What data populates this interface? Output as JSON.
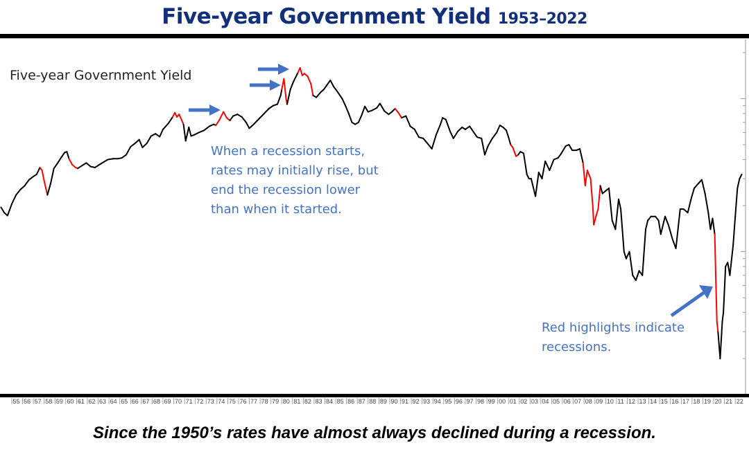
{
  "header": {
    "title": "Five-year Government Yield",
    "years": "1953–2022"
  },
  "caption": "Since the 1950’s rates have almost always declined during a recession.",
  "annotations": {
    "recession_note": [
      "When a recession starts,",
      "rates may initially rise, but",
      "end the recession lower",
      "than when it started."
    ],
    "legend_note": [
      "Red highlights indicate",
      "recessions."
    ]
  },
  "colors": {
    "title": "#12307a",
    "line": "#000000",
    "recession": "#ff0000",
    "annotation": "#4472c4"
  },
  "chart_data": {
    "type": "line",
    "title": "Five-year Government Yield",
    "xlabel": "",
    "ylabel": "",
    "y_scale": "log",
    "ylim": [
      0.12,
      30
    ],
    "xlim": [
      1954,
      2022.6
    ],
    "grid": false,
    "tick_labels": [
      "55",
      "56",
      "57",
      "58",
      "59",
      "60",
      "61",
      "62",
      "63",
      "64",
      "65",
      "66",
      "67",
      "68",
      "69",
      "70",
      "71",
      "72",
      "73",
      "74",
      "75",
      "76",
      "77",
      "78",
      "79",
      "80",
      "81",
      "82",
      "83",
      "84",
      "85",
      "86",
      "87",
      "88",
      "89",
      "90",
      "91",
      "92",
      "93",
      "94",
      "95",
      "96",
      "97",
      "98",
      "99",
      "00",
      "01",
      "02",
      "03",
      "04",
      "05",
      "06",
      "07",
      "08",
      "09",
      "10",
      "11",
      "12",
      "13",
      "14",
      "15",
      "16",
      "17",
      "18",
      "19",
      "20",
      "21",
      "22"
    ],
    "recessions": [
      [
        1957.6,
        1958.3
      ],
      [
        1960.3,
        1961.1
      ],
      [
        1969.9,
        1970.9
      ],
      [
        1973.9,
        1975.2
      ],
      [
        1980.0,
        1980.5
      ],
      [
        1981.5,
        1982.9
      ],
      [
        1990.5,
        1991.2
      ],
      [
        2001.2,
        2001.9
      ],
      [
        2007.9,
        2009.5
      ],
      [
        2020.1,
        2020.4
      ]
    ],
    "series": [
      {
        "name": "Five-year Government Yield",
        "points": [
          [
            1954.0,
            1.95
          ],
          [
            1954.3,
            1.8
          ],
          [
            1954.6,
            1.72
          ],
          [
            1955.0,
            2.05
          ],
          [
            1955.4,
            2.35
          ],
          [
            1955.8,
            2.55
          ],
          [
            1956.2,
            2.7
          ],
          [
            1956.6,
            2.95
          ],
          [
            1957.0,
            3.1
          ],
          [
            1957.3,
            3.2
          ],
          [
            1957.6,
            3.55
          ],
          [
            1957.8,
            3.4
          ],
          [
            1958.0,
            2.9
          ],
          [
            1958.3,
            2.35
          ],
          [
            1958.6,
            2.8
          ],
          [
            1958.9,
            3.5
          ],
          [
            1959.2,
            3.75
          ],
          [
            1959.6,
            4.15
          ],
          [
            1959.9,
            4.45
          ],
          [
            1960.1,
            4.5
          ],
          [
            1960.3,
            4.05
          ],
          [
            1960.6,
            3.7
          ],
          [
            1960.9,
            3.55
          ],
          [
            1961.1,
            3.5
          ],
          [
            1961.5,
            3.65
          ],
          [
            1961.9,
            3.8
          ],
          [
            1962.3,
            3.6
          ],
          [
            1962.7,
            3.55
          ],
          [
            1963.1,
            3.7
          ],
          [
            1963.5,
            3.85
          ],
          [
            1963.9,
            4.0
          ],
          [
            1964.4,
            4.05
          ],
          [
            1964.8,
            4.05
          ],
          [
            1965.2,
            4.1
          ],
          [
            1965.6,
            4.3
          ],
          [
            1966.0,
            4.85
          ],
          [
            1966.4,
            5.1
          ],
          [
            1966.8,
            5.4
          ],
          [
            1967.1,
            4.8
          ],
          [
            1967.5,
            5.1
          ],
          [
            1967.9,
            5.7
          ],
          [
            1968.3,
            5.9
          ],
          [
            1968.7,
            5.65
          ],
          [
            1969.0,
            6.3
          ],
          [
            1969.5,
            6.9
          ],
          [
            1969.9,
            7.6
          ],
          [
            1970.1,
            8.1
          ],
          [
            1970.3,
            7.6
          ],
          [
            1970.5,
            7.9
          ],
          [
            1970.9,
            6.8
          ],
          [
            1971.1,
            5.3
          ],
          [
            1971.4,
            6.5
          ],
          [
            1971.6,
            5.7
          ],
          [
            1971.9,
            5.8
          ],
          [
            1972.3,
            6.0
          ],
          [
            1972.8,
            6.2
          ],
          [
            1973.3,
            6.6
          ],
          [
            1973.7,
            6.8
          ],
          [
            1973.9,
            6.7
          ],
          [
            1974.2,
            7.2
          ],
          [
            1974.6,
            8.2
          ],
          [
            1974.9,
            7.5
          ],
          [
            1975.2,
            7.2
          ],
          [
            1975.5,
            7.7
          ],
          [
            1975.9,
            7.9
          ],
          [
            1976.3,
            7.6
          ],
          [
            1976.7,
            7.0
          ],
          [
            1977.0,
            6.4
          ],
          [
            1977.4,
            6.8
          ],
          [
            1977.9,
            7.4
          ],
          [
            1978.3,
            7.9
          ],
          [
            1978.8,
            8.6
          ],
          [
            1979.2,
            9.0
          ],
          [
            1979.6,
            9.2
          ],
          [
            1979.9,
            10.5
          ],
          [
            1980.0,
            11.5
          ],
          [
            1980.2,
            13.5
          ],
          [
            1980.4,
            10.0
          ],
          [
            1980.5,
            9.2
          ],
          [
            1980.8,
            11.5
          ],
          [
            1981.1,
            13.0
          ],
          [
            1981.5,
            14.8
          ],
          [
            1981.7,
            15.9
          ],
          [
            1981.9,
            14.2
          ],
          [
            1982.1,
            14.6
          ],
          [
            1982.4,
            14.0
          ],
          [
            1982.7,
            12.5
          ],
          [
            1982.9,
            10.5
          ],
          [
            1983.2,
            10.2
          ],
          [
            1983.6,
            11.0
          ],
          [
            1983.9,
            11.5
          ],
          [
            1984.2,
            12.3
          ],
          [
            1984.5,
            13.2
          ],
          [
            1984.8,
            12.0
          ],
          [
            1985.2,
            11.0
          ],
          [
            1985.6,
            10.0
          ],
          [
            1985.9,
            9.0
          ],
          [
            1986.2,
            8.0
          ],
          [
            1986.5,
            7.0
          ],
          [
            1986.8,
            6.8
          ],
          [
            1987.1,
            7.0
          ],
          [
            1987.4,
            7.8
          ],
          [
            1987.7,
            8.9
          ],
          [
            1988.0,
            8.2
          ],
          [
            1988.4,
            8.4
          ],
          [
            1988.8,
            8.7
          ],
          [
            1989.1,
            9.3
          ],
          [
            1989.5,
            8.3
          ],
          [
            1989.9,
            7.9
          ],
          [
            1990.2,
            8.2
          ],
          [
            1990.5,
            8.6
          ],
          [
            1990.8,
            8.1
          ],
          [
            1991.1,
            7.5
          ],
          [
            1991.5,
            7.7
          ],
          [
            1991.9,
            6.6
          ],
          [
            1992.3,
            6.3
          ],
          [
            1992.7,
            5.6
          ],
          [
            1993.1,
            5.5
          ],
          [
            1993.5,
            5.1
          ],
          [
            1993.9,
            4.7
          ],
          [
            1994.3,
            5.8
          ],
          [
            1994.7,
            6.8
          ],
          [
            1994.9,
            7.5
          ],
          [
            1995.2,
            7.3
          ],
          [
            1995.6,
            6.1
          ],
          [
            1995.9,
            5.5
          ],
          [
            1996.3,
            6.1
          ],
          [
            1996.7,
            6.5
          ],
          [
            1997.0,
            6.3
          ],
          [
            1997.4,
            6.6
          ],
          [
            1997.8,
            6.0
          ],
          [
            1998.1,
            5.6
          ],
          [
            1998.5,
            5.5
          ],
          [
            1998.8,
            4.3
          ],
          [
            1999.1,
            4.9
          ],
          [
            1999.5,
            5.5
          ],
          [
            1999.9,
            6.0
          ],
          [
            2000.2,
            6.7
          ],
          [
            2000.5,
            6.5
          ],
          [
            2000.8,
            6.2
          ],
          [
            2001.0,
            5.6
          ],
          [
            2001.2,
            5.0
          ],
          [
            2001.4,
            4.8
          ],
          [
            2001.7,
            4.2
          ],
          [
            2001.9,
            4.3
          ],
          [
            2002.1,
            4.5
          ],
          [
            2002.4,
            4.4
          ],
          [
            2002.7,
            3.2
          ],
          [
            2002.9,
            3.0
          ],
          [
            2003.1,
            3.0
          ],
          [
            2003.5,
            2.3
          ],
          [
            2003.8,
            3.3
          ],
          [
            2004.1,
            3.0
          ],
          [
            2004.4,
            3.9
          ],
          [
            2004.8,
            3.4
          ],
          [
            2005.2,
            4.0
          ],
          [
            2005.6,
            4.1
          ],
          [
            2005.9,
            4.4
          ],
          [
            2006.3,
            4.9
          ],
          [
            2006.6,
            5.0
          ],
          [
            2006.9,
            4.6
          ],
          [
            2007.3,
            4.6
          ],
          [
            2007.6,
            4.7
          ],
          [
            2007.9,
            3.8
          ],
          [
            2008.1,
            2.7
          ],
          [
            2008.3,
            3.4
          ],
          [
            2008.6,
            3.0
          ],
          [
            2008.8,
            2.0
          ],
          [
            2008.9,
            1.5
          ],
          [
            2009.1,
            1.7
          ],
          [
            2009.3,
            1.9
          ],
          [
            2009.5,
            2.7
          ],
          [
            2009.7,
            2.4
          ],
          [
            2010.0,
            2.5
          ],
          [
            2010.3,
            2.6
          ],
          [
            2010.6,
            1.6
          ],
          [
            2010.9,
            1.4
          ],
          [
            2011.2,
            2.2
          ],
          [
            2011.4,
            1.9
          ],
          [
            2011.7,
            1.0
          ],
          [
            2011.9,
            0.9
          ],
          [
            2012.2,
            1.0
          ],
          [
            2012.5,
            0.7
          ],
          [
            2012.8,
            0.65
          ],
          [
            2013.1,
            0.75
          ],
          [
            2013.4,
            0.7
          ],
          [
            2013.7,
            1.4
          ],
          [
            2013.9,
            1.6
          ],
          [
            2014.2,
            1.7
          ],
          [
            2014.6,
            1.7
          ],
          [
            2014.9,
            1.6
          ],
          [
            2015.1,
            1.3
          ],
          [
            2015.5,
            1.7
          ],
          [
            2015.8,
            1.5
          ],
          [
            2016.2,
            1.2
          ],
          [
            2016.5,
            1.05
          ],
          [
            2016.9,
            1.9
          ],
          [
            2017.2,
            1.9
          ],
          [
            2017.6,
            1.8
          ],
          [
            2017.9,
            2.2
          ],
          [
            2018.2,
            2.6
          ],
          [
            2018.6,
            2.8
          ],
          [
            2018.9,
            2.95
          ],
          [
            2019.2,
            2.4
          ],
          [
            2019.5,
            1.8
          ],
          [
            2019.7,
            1.4
          ],
          [
            2019.9,
            1.65
          ],
          [
            2020.1,
            1.3
          ],
          [
            2020.2,
            0.65
          ],
          [
            2020.3,
            0.35
          ],
          [
            2020.4,
            0.3
          ],
          [
            2020.6,
            0.2
          ],
          [
            2020.8,
            0.35
          ],
          [
            2020.9,
            0.4
          ],
          [
            2021.1,
            0.8
          ],
          [
            2021.3,
            0.85
          ],
          [
            2021.5,
            0.7
          ],
          [
            2021.8,
            1.1
          ],
          [
            2022.0,
            1.7
          ],
          [
            2022.2,
            2.6
          ],
          [
            2022.4,
            3.0
          ],
          [
            2022.5,
            3.1
          ],
          [
            2022.6,
            3.2
          ]
        ]
      }
    ]
  }
}
